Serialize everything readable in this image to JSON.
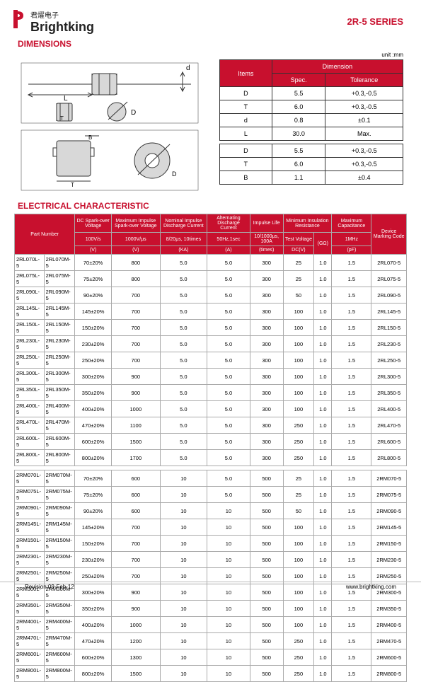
{
  "header": {
    "brand_cn": "君燿电子",
    "brand_en": "Brightking",
    "series": "2R-5 SERIES"
  },
  "sections": {
    "dimensions": "DIMENSIONS",
    "electrical": "ELECTRICAL CHARACTERISTIC"
  },
  "unit_label": "unit :mm",
  "dim_table": {
    "head_items": "Items",
    "head_dim": "Dimension",
    "head_spec": "Spec.",
    "head_tol": "Tolerance",
    "rows": [
      {
        "k": "D",
        "s": "5.5",
        "t": "+0.3,-0.5"
      },
      {
        "k": "T",
        "s": "6.0",
        "t": "+0.3,-0.5"
      },
      {
        "k": "d",
        "s": "0.8",
        "t": "±0.1"
      },
      {
        "k": "L",
        "s": "30.0",
        "t": "Max."
      }
    ],
    "rows2": [
      {
        "k": "D",
        "s": "5.5",
        "t": "+0.3,-0.5"
      },
      {
        "k": "T",
        "s": "6.0",
        "t": "+0.3,-0.5"
      },
      {
        "k": "B",
        "s": "1.1",
        "t": "±0.4"
      }
    ]
  },
  "ec_head": {
    "c1": "Part Number",
    "c2a": "DC Spark-over Voltage",
    "c2b": "100V/s",
    "c2c": "(V)",
    "c3a": "Maximum Impulse Spark-over Voltage",
    "c3b": "1000V/μs",
    "c3c": "(V)",
    "c4a": "Nominal Impulse Discharge Current",
    "c4b": "8/20μs, 10times",
    "c4c": "(KA)",
    "c5a": "Alternating Discharge Current",
    "c5b": "50Hz,1sec",
    "c5c": "(A)",
    "c6a": "Impulse Life",
    "c6b": "10/1000μs, 100A",
    "c6c": "(times)",
    "c7a": "Minimum Insulation Resistance",
    "c7b": "Test Voltage",
    "c7c": "DC(V)",
    "c7d": "(GΩ)",
    "c8a": "Maximum Capacitance",
    "c8b": "1MHz",
    "c8c": "(pF)",
    "c9": "Device Marking Code"
  },
  "ec_rows1": [
    [
      "2RL070L-5",
      "2RL070M-5",
      "70±20%",
      "800",
      "5.0",
      "5.0",
      "300",
      "25",
      "1.0",
      "1.5",
      "2RL070-5"
    ],
    [
      "2RL075L-5",
      "2RL075M-5",
      "75±20%",
      "800",
      "5.0",
      "5.0",
      "300",
      "25",
      "1.0",
      "1.5",
      "2RL075-5"
    ],
    [
      "2RL090L-5",
      "2RL090M-5",
      "90±20%",
      "700",
      "5.0",
      "5.0",
      "300",
      "50",
      "1.0",
      "1.5",
      "2RL090-5"
    ],
    [
      "2RL145L-5",
      "2RL145M-5",
      "145±20%",
      "700",
      "5.0",
      "5.0",
      "300",
      "100",
      "1.0",
      "1.5",
      "2RL145-5"
    ],
    [
      "2RL150L-5",
      "2RL150M-5",
      "150±20%",
      "700",
      "5.0",
      "5.0",
      "300",
      "100",
      "1.0",
      "1.5",
      "2RL150-5"
    ],
    [
      "2RL230L-5",
      "2RL230M-5",
      "230±20%",
      "700",
      "5.0",
      "5.0",
      "300",
      "100",
      "1.0",
      "1.5",
      "2RL230-5"
    ],
    [
      "2RL250L-5",
      "2RL250M-5",
      "250±20%",
      "700",
      "5.0",
      "5.0",
      "300",
      "100",
      "1.0",
      "1.5",
      "2RL250-5"
    ],
    [
      "2RL300L-5",
      "2RL300M-5",
      "300±20%",
      "900",
      "5.0",
      "5.0",
      "300",
      "100",
      "1.0",
      "1.5",
      "2RL300-5"
    ],
    [
      "2RL350L-5",
      "2RL350M-5",
      "350±20%",
      "900",
      "5.0",
      "5.0",
      "300",
      "100",
      "1.0",
      "1.5",
      "2RL350-5"
    ],
    [
      "2RL400L-5",
      "2RL400M-5",
      "400±20%",
      "1000",
      "5.0",
      "5.0",
      "300",
      "100",
      "1.0",
      "1.5",
      "2RL400-5"
    ],
    [
      "2RL470L-5",
      "2RL470M-5",
      "470±20%",
      "1100",
      "5.0",
      "5.0",
      "300",
      "250",
      "1.0",
      "1.5",
      "2RL470-5"
    ],
    [
      "2RL600L-5",
      "2RL600M-5",
      "600±20%",
      "1500",
      "5.0",
      "5.0",
      "300",
      "250",
      "1.0",
      "1.5",
      "2RL600-5"
    ],
    [
      "2RL800L-5",
      "2RL800M-5",
      "800±20%",
      "1700",
      "5.0",
      "5.0",
      "300",
      "250",
      "1.0",
      "1.5",
      "2RL800-5"
    ]
  ],
  "ec_rows2": [
    [
      "2RM070L-5",
      "2RM070M-5",
      "70±20%",
      "600",
      "10",
      "5.0",
      "500",
      "25",
      "1.0",
      "1.5",
      "2RM070-5"
    ],
    [
      "2RM075L-5",
      "2RM075M-5",
      "75±20%",
      "600",
      "10",
      "5.0",
      "500",
      "25",
      "1.0",
      "1.5",
      "2RM075-5"
    ],
    [
      "2RM090L-5",
      "2RM090M-5",
      "90±20%",
      "600",
      "10",
      "10",
      "500",
      "50",
      "1.0",
      "1.5",
      "2RM090-5"
    ],
    [
      "2RM145L-5",
      "2RM145M-5",
      "145±20%",
      "700",
      "10",
      "10",
      "500",
      "100",
      "1.0",
      "1.5",
      "2RM145-5"
    ],
    [
      "2RM150L-5",
      "2RM150M-5",
      "150±20%",
      "700",
      "10",
      "10",
      "500",
      "100",
      "1.0",
      "1.5",
      "2RM150-5"
    ],
    [
      "2RM230L-5",
      "2RM230M-5",
      "230±20%",
      "700",
      "10",
      "10",
      "500",
      "100",
      "1.0",
      "1.5",
      "2RM230-5"
    ],
    [
      "2RM250L-5",
      "2RM250M-5",
      "250±20%",
      "700",
      "10",
      "10",
      "500",
      "100",
      "1.0",
      "1.5",
      "2RM250-5"
    ],
    [
      "2RM300L-5",
      "2RM300M-5",
      "300±20%",
      "900",
      "10",
      "10",
      "500",
      "100",
      "1.0",
      "1.5",
      "2RM300-5"
    ],
    [
      "2RM350L-5",
      "2RM350M-5",
      "350±20%",
      "900",
      "10",
      "10",
      "500",
      "100",
      "1.0",
      "1.5",
      "2RM350-5"
    ],
    [
      "2RM400L-5",
      "2RM400M-5",
      "400±20%",
      "1000",
      "10",
      "10",
      "500",
      "100",
      "1.0",
      "1.5",
      "2RM400-5"
    ],
    [
      "2RM470L-5",
      "2RM470M-5",
      "470±20%",
      "1200",
      "10",
      "10",
      "500",
      "250",
      "1.0",
      "1.5",
      "2RM470-5"
    ],
    [
      "2RM600L-5",
      "2RM600M-5",
      "600±20%",
      "1300",
      "10",
      "10",
      "500",
      "250",
      "1.0",
      "1.5",
      "2RM600-5"
    ],
    [
      "2RM800L-5",
      "2RM800M-5",
      "800±20%",
      "1500",
      "10",
      "10",
      "500",
      "250",
      "1.0",
      "1.5",
      "2RM800-5"
    ]
  ],
  "footer": {
    "rev": "Revision:09-Feb-12",
    "url": "www.brightking.com"
  }
}
